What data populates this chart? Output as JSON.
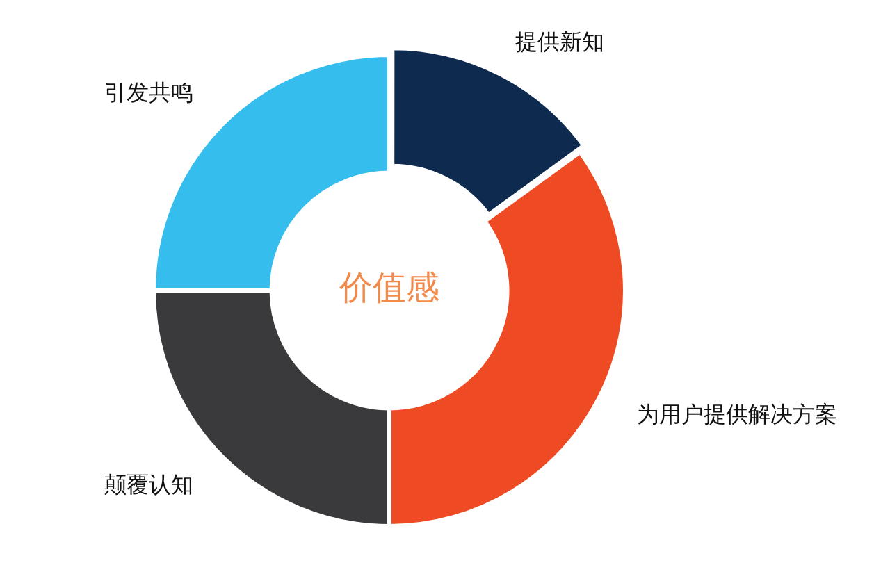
{
  "chart_data": {
    "type": "donut",
    "categories": [
      "提供新知",
      "为用户提供解决方案",
      "颠覆认知",
      "引发共鸣"
    ],
    "values": [
      15,
      35,
      25,
      25
    ],
    "colors": [
      "#0e2a4f",
      "#ee4a24",
      "#3a393b",
      "#35bdee"
    ],
    "annotations": [
      "价值感"
    ],
    "legend": false
  }
}
